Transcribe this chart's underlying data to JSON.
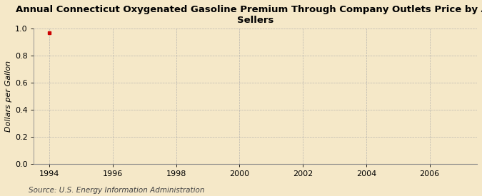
{
  "title": "Annual Connecticut Oxygenated Gasoline Premium Through Company Outlets Price by All\nSellers",
  "ylabel": "Dollars per Gallon",
  "source": "Source: U.S. Energy Information Administration",
  "xlim": [
    1993.5,
    2007.5
  ],
  "ylim": [
    0.0,
    1.0
  ],
  "xticks": [
    1994,
    1996,
    1998,
    2000,
    2002,
    2004,
    2006
  ],
  "yticks": [
    0.0,
    0.2,
    0.4,
    0.6,
    0.8,
    1.0
  ],
  "data_x": [
    1994
  ],
  "data_y": [
    0.97
  ],
  "data_color": "#cc0000",
  "background_color": "#f5e8c8",
  "plot_bg_color": "#f5e8c8",
  "grid_color": "#aaaaaa",
  "title_fontsize": 9.5,
  "label_fontsize": 8,
  "tick_fontsize": 8,
  "source_fontsize": 7.5
}
